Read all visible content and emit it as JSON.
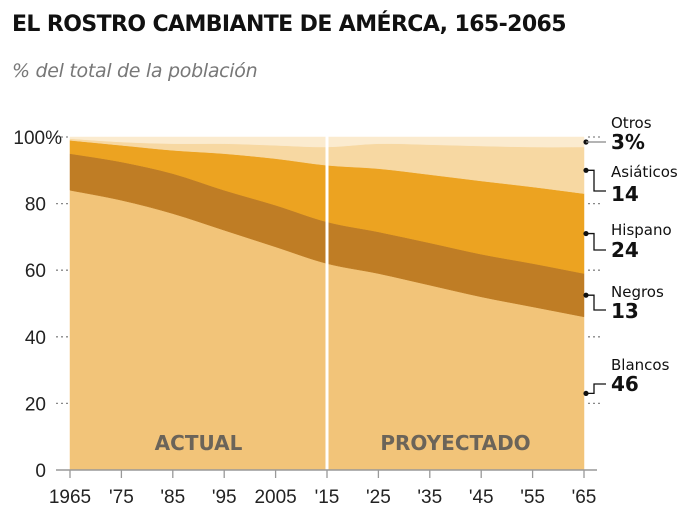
{
  "header": {
    "title": "EL ROSTRO CAMBIANTE DE AMÉRCA, 165-2065",
    "subtitle": "% del total de la población"
  },
  "chart_data": {
    "type": "area",
    "stacked": true,
    "title": "EL ROSTRO CAMBIANTE DE AMÉRCA, 165-2065",
    "subtitle": "% del total de la población",
    "xlabel": "",
    "ylabel": "% del total de la población",
    "x": [
      1965,
      1975,
      1985,
      1995,
      2005,
      2015,
      2025,
      2035,
      2045,
      2055,
      2065
    ],
    "x_tick_labels": [
      "1965",
      "'75",
      "'85",
      "'95",
      "2005",
      "'15",
      "'25",
      "'35",
      "'45",
      "'55",
      "'65"
    ],
    "y_ticks": [
      0,
      20,
      40,
      60,
      80,
      100
    ],
    "y_tick_labels": [
      "0",
      "20",
      "40",
      "60",
      "80",
      "100%"
    ],
    "xlim": [
      1965,
      2065
    ],
    "ylim": [
      0,
      100
    ],
    "grid": false,
    "divider_year": 2015,
    "periods": [
      {
        "label": "ACTUAL",
        "from": 1965,
        "to": 2015
      },
      {
        "label": "PROYECTADO",
        "from": 2015,
        "to": 2065
      }
    ],
    "series": [
      {
        "name": "Blancos",
        "color": "#f2c479",
        "values": [
          84,
          81,
          77,
          72,
          67,
          62,
          59,
          55.5,
          52,
          49,
          46
        ],
        "end_label": "46"
      },
      {
        "name": "Negros",
        "color": "#bf7d25",
        "values": [
          11,
          11.5,
          12,
          12,
          12.5,
          12.5,
          12.5,
          12.7,
          12.8,
          13,
          13
        ],
        "end_label": "13"
      },
      {
        "name": "Hispano",
        "color": "#eca321",
        "values": [
          4,
          5,
          7,
          11,
          14,
          17,
          19,
          20.5,
          22,
          23,
          24
        ],
        "end_label": "24"
      },
      {
        "name": "Asiáticos",
        "color": "#f7d8a2",
        "values": [
          0.5,
          1,
          2,
          3,
          4,
          5.5,
          7.5,
          9,
          10.5,
          12,
          14
        ],
        "end_label": "14"
      },
      {
        "name": "Otros",
        "color": "#fbebcf",
        "values": [
          0.5,
          1.5,
          2,
          2,
          2.5,
          3,
          2,
          2.3,
          2.7,
          3,
          3
        ],
        "end_label": "3%"
      }
    ],
    "legend_placement": "right"
  }
}
